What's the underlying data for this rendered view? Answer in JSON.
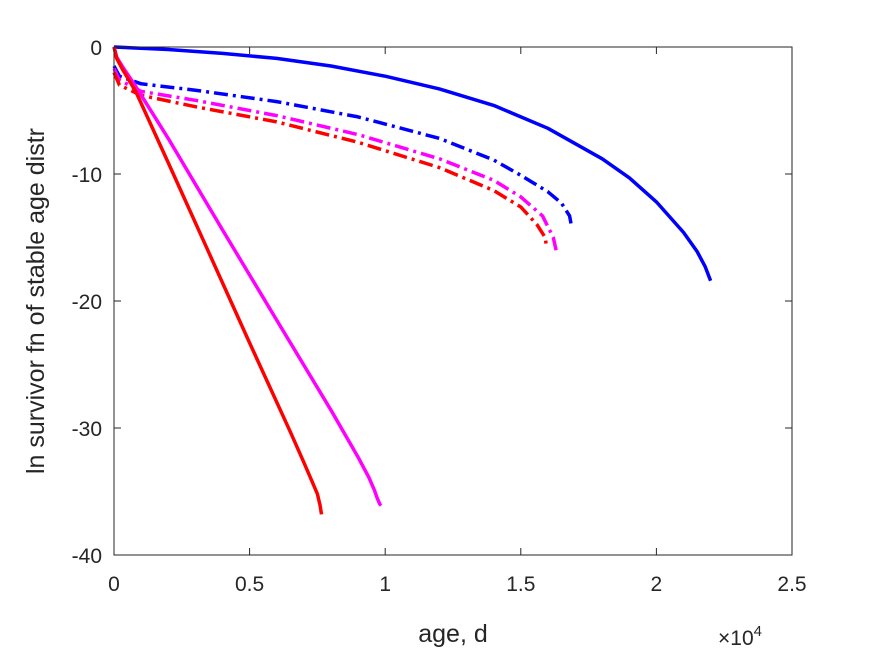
{
  "chart_data": {
    "type": "line",
    "xlabel": "age, d",
    "ylabel": "ln survivor fn of stable age distr",
    "x_exponent_base": "×10",
    "x_exponent_power": "4",
    "xlim": [
      0,
      25000
    ],
    "ylim": [
      -40,
      0
    ],
    "x_ticks": [
      0,
      5000,
      10000,
      15000,
      20000,
      25000
    ],
    "x_tick_labels": [
      "0",
      "0.5",
      "1",
      "1.5",
      "2",
      "2.5"
    ],
    "y_ticks": [
      0,
      -10,
      -20,
      -30,
      -40
    ],
    "y_tick_labels": [
      "0",
      "-10",
      "-20",
      "-30",
      "-40"
    ],
    "grid": false,
    "series": [
      {
        "color": "#0000FF",
        "style": "solid",
        "x": [
          0,
          2000,
          4000,
          6000,
          8000,
          10000,
          12000,
          14000,
          16000,
          18000,
          19000,
          20000,
          21000,
          21500,
          21800,
          22000
        ],
        "y": [
          0,
          -0.2,
          -0.5,
          -0.9,
          -1.5,
          -2.3,
          -3.3,
          -4.6,
          -6.4,
          -8.8,
          -10.3,
          -12.2,
          -14.6,
          -16.1,
          -17.3,
          -18.4
        ]
      },
      {
        "color": "#0000FF",
        "style": "dashdot",
        "x": [
          0,
          200,
          1000,
          3000,
          6000,
          9000,
          12000,
          14000,
          15000,
          16000,
          16500,
          16800,
          16850
        ],
        "y": [
          -1.5,
          -2.3,
          -2.9,
          -3.4,
          -4.3,
          -5.5,
          -7.2,
          -8.9,
          -10.1,
          -11.4,
          -12.3,
          -13.3,
          -13.9
        ]
      },
      {
        "color": "#FF00FF",
        "style": "dashdot",
        "x": [
          0,
          200,
          1000,
          3000,
          6000,
          9000,
          12000,
          14000,
          15000,
          15800,
          16200,
          16300
        ],
        "y": [
          -1.7,
          -2.6,
          -3.5,
          -4.2,
          -5.4,
          -6.9,
          -8.8,
          -10.5,
          -11.8,
          -13.3,
          -15.0,
          -16.0
        ]
      },
      {
        "color": "#FF0000",
        "style": "dashdot",
        "x": [
          0,
          200,
          1000,
          3000,
          6000,
          9000,
          12000,
          14000,
          15000,
          15600,
          15900,
          15950
        ],
        "y": [
          -2.0,
          -3.0,
          -3.8,
          -4.7,
          -5.9,
          -7.5,
          -9.5,
          -11.3,
          -12.6,
          -14.0,
          -15.0,
          -15.8
        ]
      },
      {
        "color": "#FF00FF",
        "style": "solid",
        "x": [
          0,
          100,
          300,
          800,
          2000,
          4000,
          6000,
          8000,
          9000,
          9400,
          9600,
          9700,
          9800,
          9850
        ],
        "y": [
          0,
          -0.8,
          -1.5,
          -3.1,
          -7.2,
          -14.4,
          -21.5,
          -28.6,
          -32.3,
          -33.9,
          -34.9,
          -35.5,
          -36.0,
          -36.1
        ]
      },
      {
        "color": "#FF0000",
        "style": "solid",
        "x": [
          0,
          100,
          300,
          800,
          2000,
          3500,
          5000,
          6500,
          7000,
          7300,
          7500,
          7600,
          7650
        ],
        "y": [
          0,
          -0.9,
          -1.7,
          -3.5,
          -9.1,
          -16.2,
          -23.3,
          -30.3,
          -32.7,
          -34.2,
          -35.2,
          -36.1,
          -36.8
        ]
      }
    ]
  }
}
